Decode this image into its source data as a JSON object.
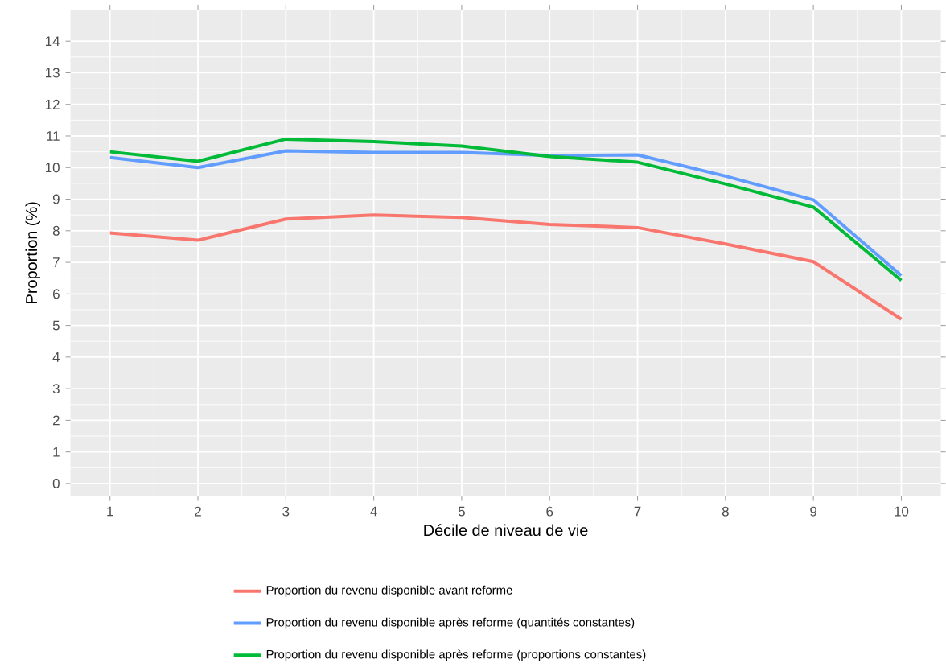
{
  "chart_data": {
    "type": "line",
    "xlabel": "Décile de niveau de vie",
    "ylabel": "Proportion (%)",
    "x": [
      1,
      2,
      3,
      4,
      5,
      6,
      7,
      8,
      9,
      10
    ],
    "series": [
      {
        "name": "Proportion du revenu disponible avant reforme",
        "color": "#f8766d",
        "values": [
          7.93,
          7.7,
          8.37,
          8.5,
          8.42,
          8.2,
          8.1,
          7.58,
          7.02,
          5.2
        ]
      },
      {
        "name": "Proportion du revenu disponible après reforme (quantités constantes)",
        "color": "#619cff",
        "values": [
          10.32,
          10.0,
          10.53,
          10.48,
          10.48,
          10.38,
          10.4,
          9.73,
          8.98,
          6.58
        ]
      },
      {
        "name": "Proportion du revenu disponible après reforme (proportions constantes)",
        "color": "#00ba38",
        "values": [
          10.5,
          10.2,
          10.9,
          10.82,
          10.68,
          10.35,
          10.17,
          9.48,
          8.75,
          6.43
        ]
      }
    ],
    "xlim": [
      0.55,
      10.45
    ],
    "ylim": [
      -0.4,
      15.0
    ],
    "xticks": [
      1,
      2,
      3,
      4,
      5,
      6,
      7,
      8,
      9,
      10
    ],
    "yticks": [
      0,
      1,
      2,
      3,
      4,
      5,
      6,
      7,
      8,
      9,
      10,
      11,
      12,
      13,
      14
    ],
    "grid": true,
    "legend": "bottom",
    "line_style": "solid"
  }
}
